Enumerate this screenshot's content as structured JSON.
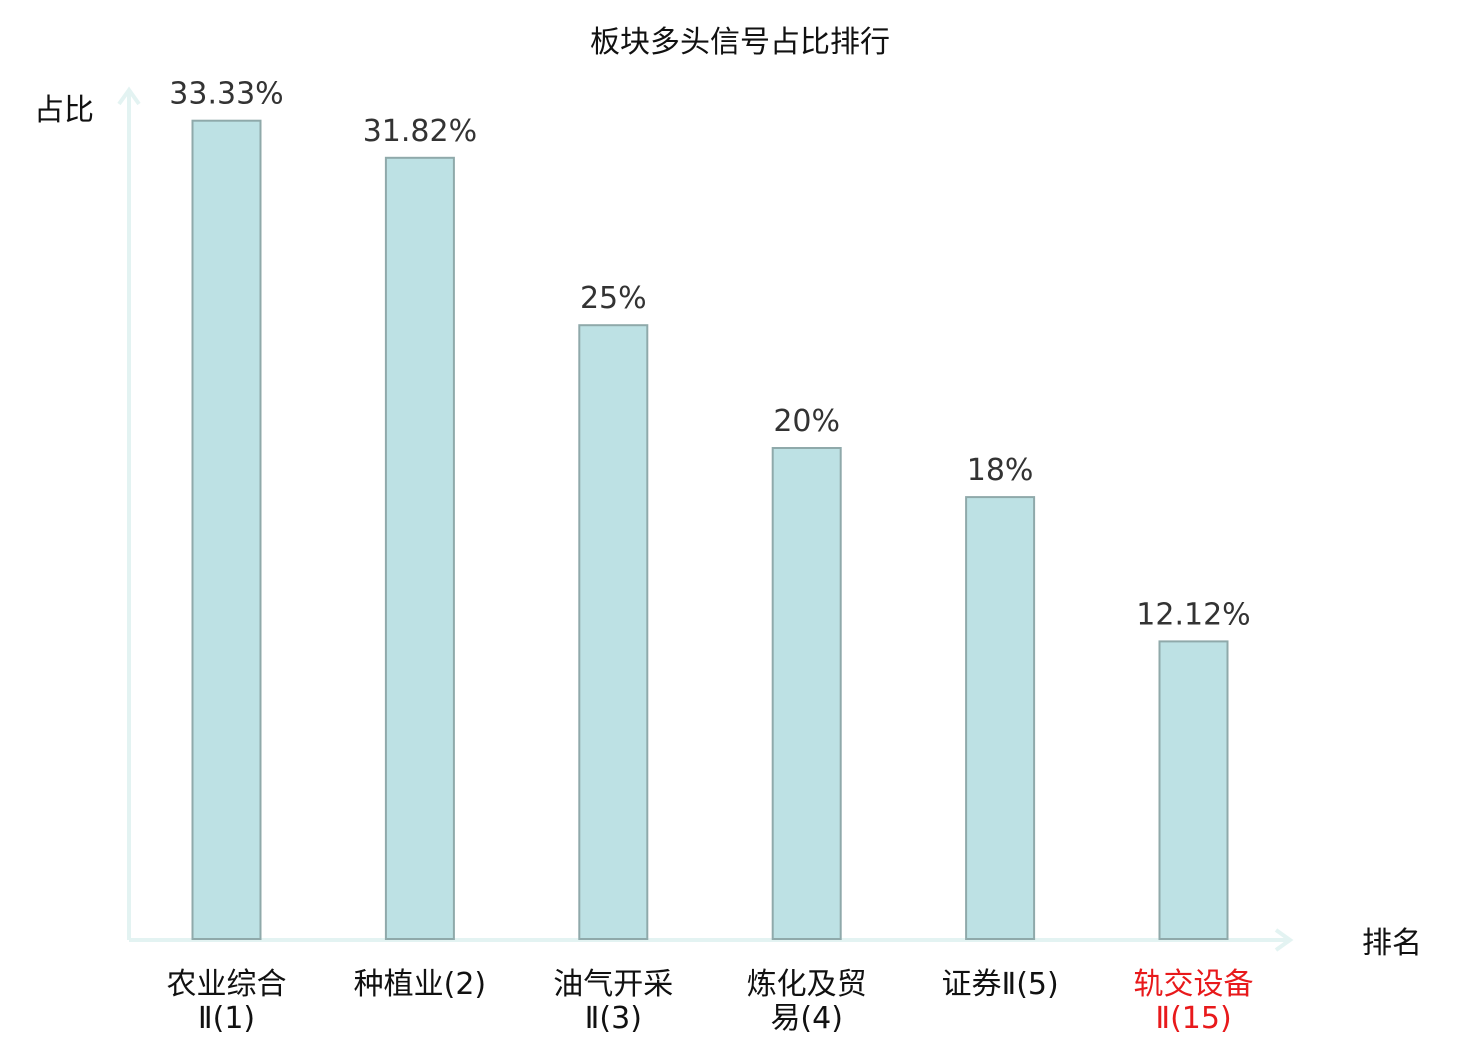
{
  "chart_data": {
    "type": "bar",
    "title": "板块多头信号占比排行",
    "xlabel": "排名",
    "ylabel": "占比",
    "ylim": [
      0,
      34.5
    ],
    "grid": false,
    "categories": [
      {
        "name": "农业综合Ⅱ",
        "rank": "(1)",
        "highlight": false
      },
      {
        "name": "种植业",
        "rank": "(2)",
        "highlight": false
      },
      {
        "name": "油气开采Ⅱ",
        "rank": "(3)",
        "highlight": false
      },
      {
        "name": "炼化及贸易",
        "rank": "(4)",
        "highlight": false
      },
      {
        "name": "证券Ⅱ",
        "rank": "(5)",
        "highlight": false
      },
      {
        "name": "轨交设备Ⅱ",
        "rank": "(15)",
        "highlight": true
      }
    ],
    "values": [
      33.33,
      31.82,
      25,
      20,
      18,
      12.12
    ],
    "value_labels": [
      "33.33%",
      "31.82%",
      "25%",
      "20%",
      "18%",
      "12.12%"
    ]
  },
  "colors": {
    "bar_fill": "#bde1e4",
    "bar_stroke": "#8fa9aa",
    "axis": "#e3f3f2",
    "text": "#111111",
    "value_text": "#333333",
    "highlight": "#e8191b"
  }
}
